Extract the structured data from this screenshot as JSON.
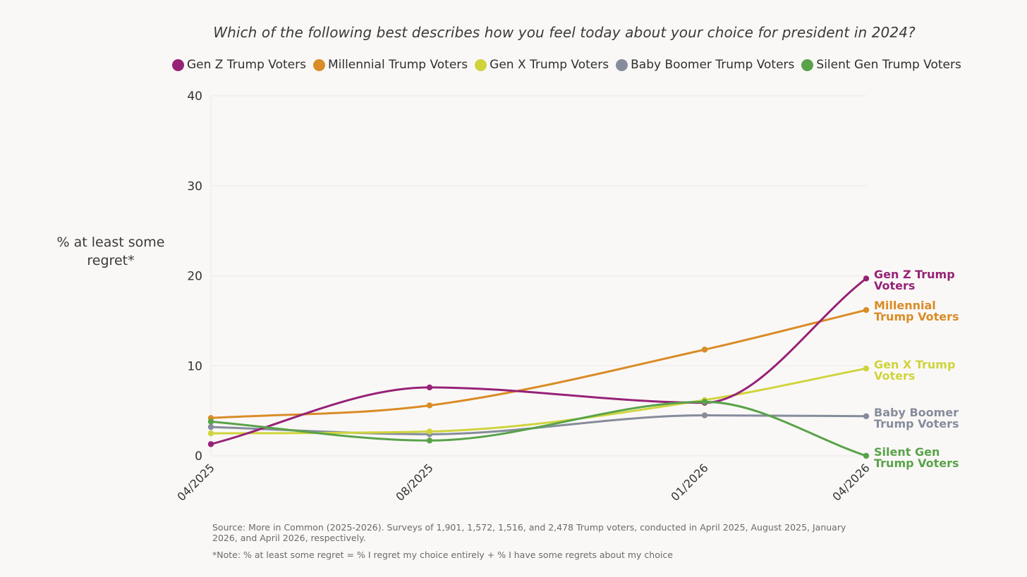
{
  "chart_data": {
    "type": "line",
    "title": "Which of the following best describes how you feel today about your choice for president in 2024?",
    "ylabel": "% at least some regret*",
    "xlabel": "",
    "categories": [
      "04/2025",
      "08/2025",
      "01/2026",
      "04/2026"
    ],
    "ylim": [
      0,
      40
    ],
    "yticks": [
      "0",
      "10",
      "20",
      "30",
      "40"
    ],
    "grid": true,
    "legend": "top",
    "series": [
      {
        "name": "Gen Z Trump Voters",
        "end_label_1": "Gen Z Trump",
        "end_label_2": "Voters",
        "color": "#962277",
        "values": [
          1.3,
          7.6,
          5.9,
          19.7
        ]
      },
      {
        "name": "Millennial Trump Voters",
        "end_label_1": "Millennial",
        "end_label_2": "Trump Voters",
        "color": "#d98c27",
        "values": [
          4.2,
          5.6,
          11.8,
          16.2
        ]
      },
      {
        "name": "Gen X Trump Voters",
        "end_label_1": "Gen X Trump",
        "end_label_2": "Voters",
        "color": "#cfd43d",
        "values": [
          2.5,
          2.7,
          6.2,
          9.7
        ]
      },
      {
        "name": "Baby Boomer Trump Voters",
        "end_label_1": "Baby Boomer",
        "end_label_2": "Trump Voters",
        "color": "#868c9c",
        "values": [
          3.2,
          2.4,
          4.5,
          4.4
        ]
      },
      {
        "name": "Silent Gen Trump Voters",
        "end_label_1": "Silent Gen",
        "end_label_2": "Trump Voters",
        "color": "#58a34a",
        "values": [
          3.8,
          1.7,
          6.0,
          0.0
        ]
      }
    ]
  },
  "footnotes": {
    "source": "Source: More in Common (2025-2026). Surveys of 1,901, 1,572, 1,516, and 2,478 Trump voters, conducted in April 2025, August 2025, January 2026, and April 2026, respectively.",
    "note": "*Note: % at least some regret = % I regret my choice entirely + % I have some regrets about my choice"
  }
}
